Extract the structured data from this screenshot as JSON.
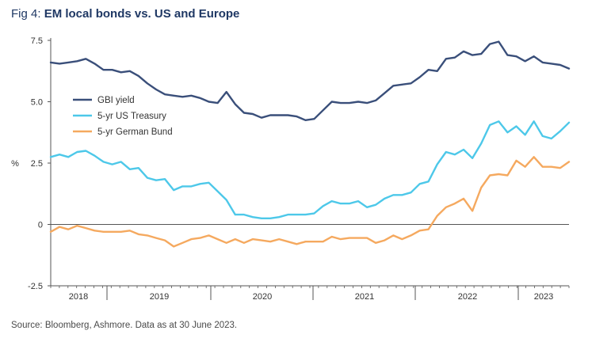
{
  "title": {
    "prefix": "Fig 4: ",
    "main": "EM local bonds vs. US and Europe"
  },
  "source": "Source: Bloomberg, Ashmore. Data as at 30 June 2023.",
  "colors": {
    "gbi": "#3a4f7a",
    "ust": "#4dc8e9",
    "bund": "#f5a95f",
    "axis": "#555555"
  },
  "chart_data": {
    "type": "line",
    "title": "EM local bonds vs. US and Europe",
    "xlabel": "",
    "ylabel": "%",
    "ylim": [
      -2.5,
      7.5
    ],
    "yticks": [
      "7.5",
      "5.0",
      "2.5",
      "0",
      "-2.5"
    ],
    "ytick_values": [
      7.5,
      5.0,
      2.5,
      0,
      -2.5
    ],
    "xticks": [
      "2018",
      "2019",
      "2020",
      "2021",
      "2022",
      "2023"
    ],
    "grid": false,
    "legend": "top-left",
    "series": [
      {
        "name": "GBI yield",
        "color": "#3a4f7a",
        "values": [
          6.6,
          6.55,
          6.6,
          6.65,
          6.75,
          6.55,
          6.3,
          6.3,
          6.2,
          6.25,
          6.05,
          5.75,
          5.5,
          5.3,
          5.25,
          5.2,
          5.25,
          5.15,
          5.0,
          4.95,
          5.4,
          4.9,
          4.55,
          4.5,
          4.35,
          4.45,
          4.45,
          4.45,
          4.4,
          4.25,
          4.3,
          4.65,
          5.0,
          4.95,
          4.95,
          5.0,
          4.95,
          5.05,
          5.35,
          5.65,
          5.7,
          5.75,
          6.0,
          6.3,
          6.25,
          6.75,
          6.8,
          7.05,
          6.9,
          6.95,
          7.35,
          7.45,
          6.9,
          6.85,
          6.65,
          6.85,
          6.6,
          6.55,
          6.5,
          6.35
        ]
      },
      {
        "name": "5-yr US Treasury",
        "color": "#4dc8e9",
        "values": [
          2.75,
          2.85,
          2.75,
          2.95,
          3.0,
          2.8,
          2.55,
          2.45,
          2.55,
          2.25,
          2.3,
          1.9,
          1.8,
          1.85,
          1.4,
          1.55,
          1.55,
          1.65,
          1.7,
          1.35,
          1.0,
          0.4,
          0.4,
          0.3,
          0.25,
          0.25,
          0.3,
          0.4,
          0.4,
          0.4,
          0.45,
          0.75,
          0.95,
          0.85,
          0.85,
          0.95,
          0.7,
          0.8,
          1.05,
          1.2,
          1.2,
          1.3,
          1.65,
          1.75,
          2.45,
          2.95,
          2.85,
          3.05,
          2.7,
          3.3,
          4.05,
          4.2,
          3.75,
          4.0,
          3.65,
          4.2,
          3.6,
          3.5,
          3.8,
          4.15
        ]
      },
      {
        "name": "5-yr German Bund",
        "color": "#f5a95f",
        "values": [
          -0.3,
          -0.1,
          -0.2,
          -0.05,
          -0.15,
          -0.25,
          -0.3,
          -0.3,
          -0.3,
          -0.25,
          -0.4,
          -0.45,
          -0.55,
          -0.65,
          -0.9,
          -0.75,
          -0.6,
          -0.55,
          -0.45,
          -0.6,
          -0.75,
          -0.6,
          -0.75,
          -0.6,
          -0.65,
          -0.7,
          -0.6,
          -0.7,
          -0.8,
          -0.7,
          -0.7,
          -0.7,
          -0.5,
          -0.6,
          -0.55,
          -0.55,
          -0.55,
          -0.75,
          -0.65,
          -0.45,
          -0.6,
          -0.45,
          -0.25,
          -0.2,
          0.35,
          0.7,
          0.85,
          1.05,
          0.55,
          1.5,
          2.0,
          2.05,
          2.0,
          2.6,
          2.35,
          2.75,
          2.35,
          2.35,
          2.3,
          2.55
        ]
      }
    ]
  }
}
